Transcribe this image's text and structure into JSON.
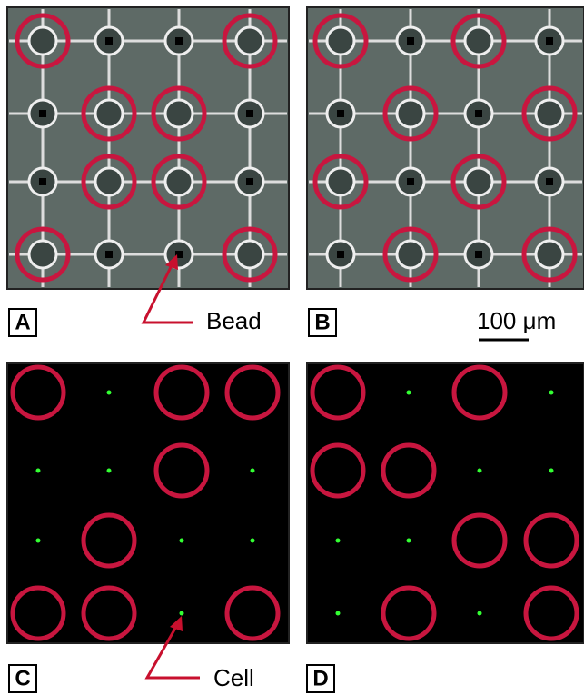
{
  "panels": {
    "a": {
      "label": "A"
    },
    "b": {
      "label": "B"
    },
    "c": {
      "label": "C"
    },
    "d": {
      "label": "D"
    }
  },
  "annotations": {
    "bead": "Bead",
    "cell": "Cell",
    "scale_bar": "100 μm"
  }
}
